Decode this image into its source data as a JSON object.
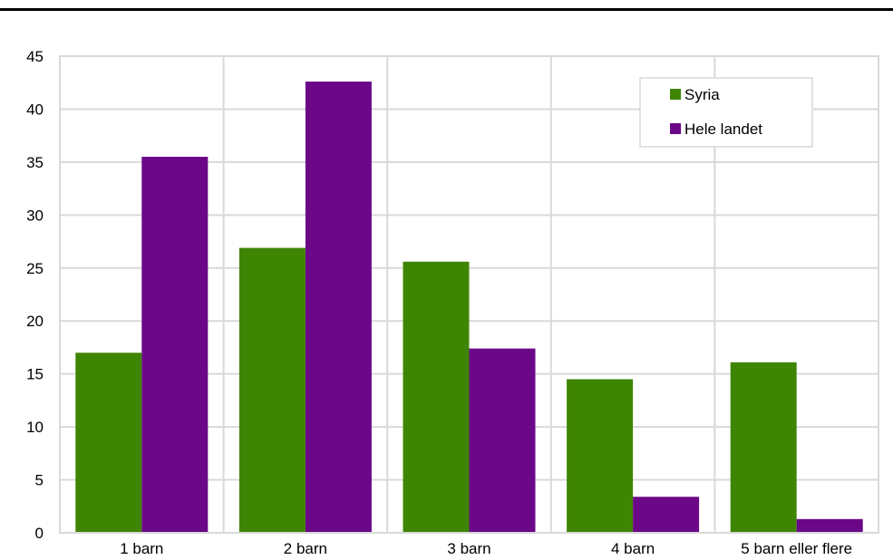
{
  "chart_data": {
    "type": "bar",
    "categories": [
      "1 barn",
      "2 barn",
      "3 barn",
      "4 barn",
      "5 barn eller flere"
    ],
    "series": [
      {
        "name": "Syria",
        "color": "#3f8504",
        "values": [
          17.0,
          26.9,
          25.6,
          14.5,
          16.1
        ]
      },
      {
        "name": "Hele landet",
        "color": "#6a0888",
        "values": [
          35.5,
          42.6,
          17.4,
          3.4,
          1.3
        ]
      }
    ],
    "ylim": [
      0,
      45
    ],
    "yticks": [
      0,
      5,
      10,
      15,
      20,
      25,
      30,
      35,
      40,
      45
    ],
    "grid": true,
    "legend_position": "top-right",
    "xlabel": "",
    "ylabel": ""
  }
}
